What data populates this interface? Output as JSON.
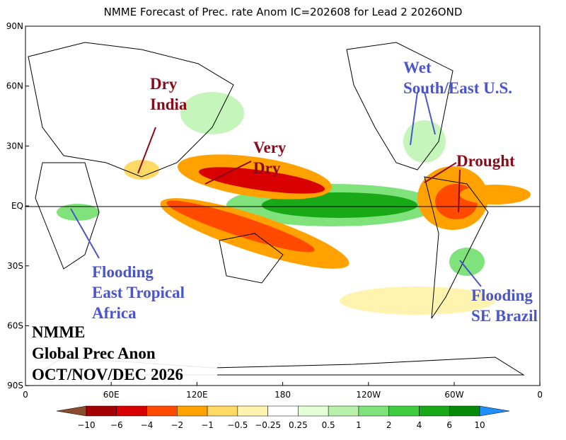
{
  "header": {
    "title": "NMME Forecast of Prec. rate Anom IC=202608 for Lead 2 2026OND"
  },
  "axes": {
    "lat_labels": [
      "90N",
      "60N",
      "30N",
      "EQ",
      "30S",
      "60S",
      "90S"
    ],
    "lon_labels": [
      "0",
      "60E",
      "120E",
      "180",
      "120W",
      "60W",
      "0"
    ]
  },
  "annotations": {
    "dry_india": [
      "Dry",
      "India"
    ],
    "very_dry": [
      "Very",
      "Dry"
    ],
    "drought": [
      "Drought"
    ],
    "wet_us": [
      "Wet",
      "South/East U.S."
    ],
    "flooding_africa": [
      "Flooding",
      "East Tropical",
      "Africa"
    ],
    "flooding_brazil": [
      "Flooding",
      "SE Brazil"
    ]
  },
  "info_box": [
    "NMME",
    "Global Prec Anon",
    "OCT/NOV/DEC 2026"
  ],
  "legend": {
    "labels": [
      "−10",
      "−6",
      "−4",
      "−2",
      "−1",
      "−0.5",
      "−0.25",
      "0.25",
      "0.5",
      "1",
      "2",
      "4",
      "6",
      "10"
    ],
    "colors": [
      "#8a4b2e",
      "#a50000",
      "#d80000",
      "#ff4a00",
      "#ffa200",
      "#ffd966",
      "#fff3b0",
      "#ffffff",
      "#e2ffd8",
      "#b8f2aa",
      "#80e27a",
      "#40cc40",
      "#18a818",
      "#078a07",
      "#1e8fff"
    ]
  }
}
